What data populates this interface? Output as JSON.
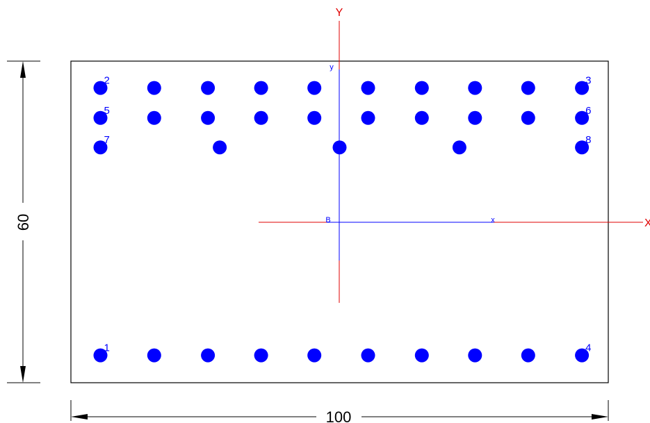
{
  "dimensions": {
    "width_label": "100",
    "height_label": "60"
  },
  "axes": {
    "global_x_label": "X",
    "global_y_label": "Y",
    "local_x_label": "x",
    "local_y_label": "y",
    "centroid_label": "B"
  },
  "section": {
    "width": 100,
    "height": 60
  },
  "bars": [
    {
      "x": 5.5,
      "y": 5.1,
      "label": "1"
    },
    {
      "x": 15.5,
      "y": 5.1,
      "label": ""
    },
    {
      "x": 25.5,
      "y": 5.1,
      "label": ""
    },
    {
      "x": 35.4,
      "y": 5.1,
      "label": ""
    },
    {
      "x": 45.3,
      "y": 5.1,
      "label": ""
    },
    {
      "x": 55.3,
      "y": 5.1,
      "label": ""
    },
    {
      "x": 65.3,
      "y": 5.1,
      "label": ""
    },
    {
      "x": 75.2,
      "y": 5.1,
      "label": ""
    },
    {
      "x": 85.1,
      "y": 5.1,
      "label": ""
    },
    {
      "x": 95.1,
      "y": 5.1,
      "label": "4"
    },
    {
      "x": 5.5,
      "y": 55.0,
      "label": "2"
    },
    {
      "x": 15.5,
      "y": 55.0,
      "label": ""
    },
    {
      "x": 25.5,
      "y": 55.0,
      "label": ""
    },
    {
      "x": 35.4,
      "y": 55.0,
      "label": ""
    },
    {
      "x": 45.3,
      "y": 55.0,
      "label": ""
    },
    {
      "x": 55.3,
      "y": 55.0,
      "label": ""
    },
    {
      "x": 65.3,
      "y": 55.0,
      "label": ""
    },
    {
      "x": 75.2,
      "y": 55.0,
      "label": ""
    },
    {
      "x": 85.1,
      "y": 55.0,
      "label": ""
    },
    {
      "x": 95.1,
      "y": 55.0,
      "label": "3"
    },
    {
      "x": 5.5,
      "y": 49.4,
      "label": "5"
    },
    {
      "x": 15.5,
      "y": 49.4,
      "label": ""
    },
    {
      "x": 25.5,
      "y": 49.4,
      "label": ""
    },
    {
      "x": 35.4,
      "y": 49.4,
      "label": ""
    },
    {
      "x": 45.3,
      "y": 49.4,
      "label": ""
    },
    {
      "x": 55.3,
      "y": 49.4,
      "label": ""
    },
    {
      "x": 65.3,
      "y": 49.4,
      "label": ""
    },
    {
      "x": 75.2,
      "y": 49.4,
      "label": ""
    },
    {
      "x": 85.1,
      "y": 49.4,
      "label": ""
    },
    {
      "x": 95.1,
      "y": 49.4,
      "label": "6"
    },
    {
      "x": 5.5,
      "y": 43.9,
      "label": "7"
    },
    {
      "x": 27.7,
      "y": 43.9,
      "label": ""
    },
    {
      "x": 50.0,
      "y": 43.9,
      "label": ""
    },
    {
      "x": 72.3,
      "y": 43.9,
      "label": ""
    },
    {
      "x": 95.1,
      "y": 43.9,
      "label": "8"
    }
  ],
  "colors": {
    "bar": "#0000ff",
    "global_axis": "#e00000",
    "local_axis": "#0000ff",
    "outline": "#000000"
  }
}
